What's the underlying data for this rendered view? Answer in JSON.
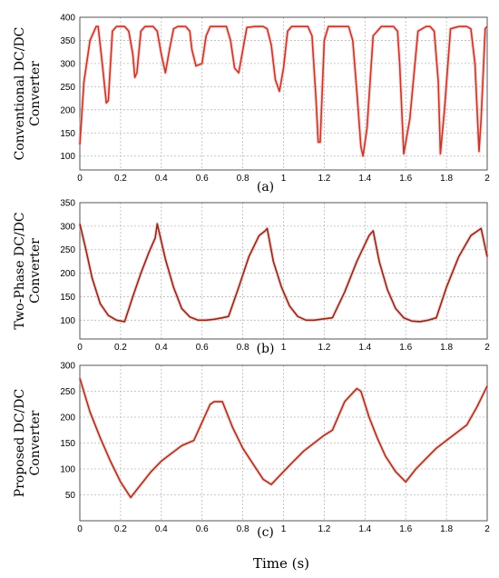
{
  "figure": {
    "xlabel": "Time (s)"
  },
  "chart_data": [
    {
      "type": "line",
      "panel_label": "(a)",
      "ylabel": "Conventional DC/DC Converter",
      "ylabel_lines": [
        "Conventional DC/DC",
        "Converter"
      ],
      "xlim": [
        0,
        2
      ],
      "ylim": [
        70,
        400
      ],
      "xticks": [
        0,
        0.2,
        0.4,
        0.6,
        0.8,
        1,
        1.2,
        1.4,
        1.6,
        1.8,
        2
      ],
      "xtick_labels": [
        "0",
        "0.2",
        "0.4",
        "0.6",
        "0.8",
        "1",
        "1.2",
        "1.4",
        "1.6",
        "1.8",
        "2"
      ],
      "yticks": [
        100,
        150,
        200,
        250,
        300,
        350,
        400
      ],
      "ytick_labels": [
        "100",
        "150",
        "200",
        "250",
        "300",
        "350",
        "400"
      ],
      "grid": true,
      "series_color": "#c0392b",
      "series": [
        {
          "x": [
            0,
            0.02,
            0.05,
            0.08,
            0.09,
            0.11,
            0.13,
            0.14,
            0.16,
            0.18,
            0.2,
            0.22,
            0.24,
            0.26,
            0.27,
            0.28,
            0.3,
            0.32,
            0.34,
            0.36,
            0.38,
            0.4,
            0.42,
            0.44,
            0.46,
            0.48,
            0.5,
            0.52,
            0.54,
            0.55,
            0.57,
            0.6,
            0.62,
            0.64,
            0.66,
            0.7,
            0.72,
            0.74,
            0.76,
            0.78,
            0.82,
            0.86,
            0.9,
            0.92,
            0.94,
            0.96,
            0.98,
            1.0,
            1.02,
            1.04,
            1.08,
            1.12,
            1.14,
            1.16,
            1.17,
            1.18,
            1.2,
            1.22,
            1.24,
            1.28,
            1.32,
            1.34,
            1.36,
            1.38,
            1.39,
            1.41,
            1.44,
            1.48,
            1.52,
            1.54,
            1.56,
            1.57,
            1.59,
            1.62,
            1.66,
            1.7,
            1.72,
            1.74,
            1.76,
            1.77,
            1.79,
            1.82,
            1.86,
            1.9,
            1.92,
            1.94,
            1.96,
            1.97,
            1.99,
            2.0
          ],
          "y": [
            125,
            260,
            350,
            380,
            380,
            300,
            215,
            220,
            370,
            380,
            380,
            380,
            370,
            320,
            270,
            280,
            370,
            380,
            380,
            380,
            370,
            320,
            280,
            330,
            375,
            380,
            380,
            380,
            370,
            330,
            295,
            300,
            360,
            380,
            380,
            380,
            380,
            350,
            290,
            280,
            378,
            380,
            380,
            375,
            340,
            265,
            240,
            290,
            370,
            380,
            380,
            380,
            360,
            220,
            130,
            130,
            350,
            380,
            380,
            380,
            380,
            350,
            240,
            120,
            100,
            160,
            360,
            380,
            380,
            380,
            370,
            300,
            105,
            180,
            370,
            380,
            380,
            370,
            260,
            105,
            200,
            375,
            380,
            380,
            375,
            300,
            110,
            180,
            375,
            380
          ]
        }
      ]
    },
    {
      "type": "line",
      "panel_label": "(b)",
      "ylabel": "Two-Phase DC/DC Converter",
      "ylabel_lines": [
        "Two-Phase DC/DC",
        "Converter"
      ],
      "xlim": [
        0,
        2
      ],
      "ylim": [
        60,
        350
      ],
      "xticks": [
        0,
        0.2,
        0.4,
        0.6,
        0.8,
        1,
        1.2,
        1.4,
        1.6,
        1.8,
        2
      ],
      "xtick_labels": [
        "0",
        "0.2",
        "0.4",
        "0.6",
        "0.8",
        "1",
        "1.2",
        "1.4",
        "1.6",
        "1.8",
        "2"
      ],
      "yticks": [
        100,
        150,
        200,
        250,
        300,
        350
      ],
      "ytick_labels": [
        "100",
        "150",
        "200",
        "250",
        "300",
        "350"
      ],
      "grid": true,
      "series_color": "#8b2a1a",
      "series": [
        {
          "x": [
            0,
            0.03,
            0.06,
            0.1,
            0.14,
            0.18,
            0.22,
            0.26,
            0.3,
            0.34,
            0.37,
            0.38,
            0.42,
            0.46,
            0.5,
            0.54,
            0.58,
            0.62,
            0.66,
            0.7,
            0.73,
            0.78,
            0.83,
            0.88,
            0.91,
            0.92,
            0.95,
            0.99,
            1.03,
            1.07,
            1.11,
            1.15,
            1.2,
            1.24,
            1.3,
            1.36,
            1.42,
            1.44,
            1.47,
            1.51,
            1.55,
            1.59,
            1.63,
            1.67,
            1.71,
            1.75,
            1.8,
            1.86,
            1.92,
            1.97,
            2.0
          ],
          "y": [
            305,
            250,
            190,
            135,
            110,
            100,
            97,
            150,
            200,
            245,
            275,
            305,
            230,
            170,
            125,
            107,
            100,
            100,
            102,
            105,
            108,
            170,
            235,
            280,
            290,
            295,
            225,
            170,
            130,
            108,
            100,
            100,
            103,
            105,
            160,
            225,
            280,
            290,
            225,
            165,
            125,
            105,
            98,
            97,
            100,
            105,
            170,
            235,
            280,
            295,
            235
          ]
        }
      ]
    },
    {
      "type": "line",
      "panel_label": "(c)",
      "ylabel": "Proposed DC/DC Converter",
      "ylabel_lines": [
        "Proposed DC/DC",
        "Converter"
      ],
      "xlim": [
        0,
        2
      ],
      "ylim": [
        0,
        300
      ],
      "xticks": [
        0,
        0.2,
        0.4,
        0.6,
        0.8,
        1,
        1.2,
        1.4,
        1.6,
        1.8,
        2
      ],
      "xtick_labels": [
        "0",
        "0.2",
        "0.4",
        "0.6",
        "0.8",
        "1",
        "1.2",
        "1.4",
        "1.6",
        "1.8",
        "2"
      ],
      "yticks": [
        50,
        100,
        150,
        200,
        250,
        300
      ],
      "ytick_labels": [
        "50",
        "100",
        "150",
        "200",
        "250",
        "300"
      ],
      "grid": true,
      "series_color": "#a3331f",
      "series": [
        {
          "x": [
            0,
            0.05,
            0.1,
            0.15,
            0.2,
            0.25,
            0.3,
            0.35,
            0.4,
            0.45,
            0.5,
            0.56,
            0.64,
            0.66,
            0.7,
            0.75,
            0.8,
            0.85,
            0.9,
            0.94,
            1.0,
            1.05,
            1.1,
            1.15,
            1.2,
            1.24,
            1.3,
            1.36,
            1.38,
            1.42,
            1.46,
            1.5,
            1.55,
            1.6,
            1.65,
            1.7,
            1.75,
            1.8,
            1.85,
            1.9,
            1.95,
            2.0
          ],
          "y": [
            275,
            210,
            160,
            115,
            75,
            45,
            70,
            95,
            115,
            130,
            145,
            155,
            225,
            230,
            230,
            180,
            140,
            110,
            80,
            70,
            95,
            115,
            135,
            150,
            165,
            175,
            230,
            255,
            250,
            200,
            160,
            125,
            95,
            75,
            100,
            120,
            140,
            155,
            170,
            185,
            220,
            260
          ]
        }
      ]
    }
  ]
}
